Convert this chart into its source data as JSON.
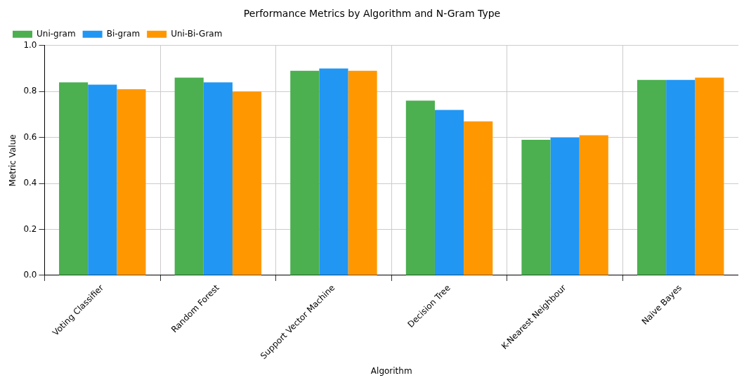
{
  "chart_data": {
    "type": "bar",
    "title": "Performance Metrics by Algorithm and N-Gram Type",
    "xlabel": "Algorithm",
    "ylabel": "Metric Value",
    "categories": [
      "Voting Classifier",
      "Random Forest",
      "Support Vector Machine",
      "Decision Tree",
      "K-Nearest Neighbour",
      "Naive Bayes"
    ],
    "series": [
      {
        "name": "Uni-gram",
        "color": "#4caf50",
        "values": [
          0.84,
          0.86,
          0.89,
          0.76,
          0.59,
          0.85
        ]
      },
      {
        "name": "Bi-gram",
        "color": "#2196f3",
        "values": [
          0.83,
          0.84,
          0.9,
          0.72,
          0.6,
          0.85
        ]
      },
      {
        "name": "Uni-Bi-Gram",
        "color": "#ff9800",
        "values": [
          0.81,
          0.8,
          0.89,
          0.67,
          0.61,
          0.86
        ]
      }
    ],
    "ylim": [
      0,
      1
    ],
    "yticks": [
      {
        "value": 0,
        "label": "0.0"
      },
      {
        "value": 0.2,
        "label": "0.2"
      },
      {
        "value": 0.4,
        "label": "0.4"
      },
      {
        "value": 0.6,
        "label": "0.6"
      },
      {
        "value": 0.8,
        "label": "0.8"
      },
      {
        "value": 1,
        "label": "1.0"
      }
    ],
    "grid": true,
    "legend": "top left"
  }
}
